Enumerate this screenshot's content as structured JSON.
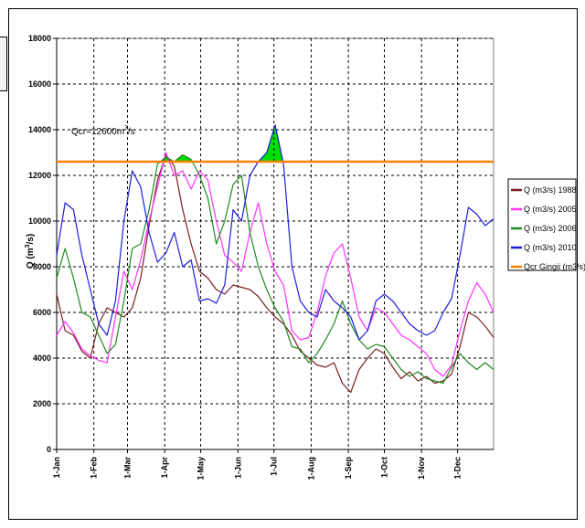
{
  "colors": {
    "1988": "#7a1f1f",
    "2005": "#ff33ff",
    "2006": "#1f8a1f",
    "2010": "#1f1fd9",
    "threshold": "#ff8000",
    "exceedance_fill": "#00dd00"
  },
  "chart_data": {
    "type": "line",
    "title": "",
    "ylabel": "Q (m³/s)",
    "xlabel": "",
    "ylim": [
      0,
      18000
    ],
    "yticks": [
      0,
      2000,
      4000,
      6000,
      8000,
      10000,
      12000,
      14000,
      16000,
      18000
    ],
    "xlim": [
      1,
      365
    ],
    "x_ticks": [
      {
        "label": "1-Jan",
        "day": 1
      },
      {
        "label": "1-Feb",
        "day": 32
      },
      {
        "label": "1-Mar",
        "day": 60
      },
      {
        "label": "1-Apr",
        "day": 91
      },
      {
        "label": "1-May",
        "day": 121
      },
      {
        "label": "1-Jun",
        "day": 152
      },
      {
        "label": "1-Jul",
        "day": 182
      },
      {
        "label": "1-Aug",
        "day": 213
      },
      {
        "label": "1-Sep",
        "day": 244
      },
      {
        "label": "1-Oct",
        "day": 274
      },
      {
        "label": "1-Nov",
        "day": 305
      },
      {
        "label": "1-Dec",
        "day": 335
      }
    ],
    "grid": true,
    "legend_position": "right",
    "annotation": "Qcr=12600m³/s",
    "threshold": {
      "name": "Qcr Gingii (m3/s)",
      "value": 12600
    },
    "series": [
      {
        "key": "1988",
        "name": "Q (m3/s) 1988",
        "x": [
          1,
          8,
          15,
          22,
          29,
          36,
          43,
          50,
          57,
          64,
          71,
          78,
          85,
          92,
          99,
          106,
          113,
          120,
          127,
          134,
          141,
          148,
          155,
          162,
          169,
          176,
          183,
          190,
          197,
          204,
          211,
          218,
          225,
          232,
          239,
          246,
          253,
          260,
          267,
          274,
          281,
          288,
          295,
          302,
          309,
          316,
          323,
          330,
          337,
          344,
          351,
          358,
          365
        ],
        "y": [
          6800,
          5200,
          5000,
          4300,
          4000,
          5500,
          6200,
          6000,
          5800,
          6200,
          7500,
          9800,
          11800,
          12900,
          12400,
          10500,
          9000,
          7800,
          7500,
          7000,
          6800,
          7200,
          7100,
          7000,
          6700,
          6200,
          5800,
          5500,
          5000,
          4300,
          4000,
          3700,
          3600,
          3800,
          2900,
          2500,
          3500,
          4000,
          4400,
          4200,
          3600,
          3100,
          3400,
          3000,
          3200,
          2900,
          3000,
          3300,
          4500,
          6000,
          5800,
          5400,
          4900
        ]
      },
      {
        "key": "2005",
        "name": "Q (m3/s) 2005",
        "x": [
          1,
          8,
          15,
          22,
          29,
          36,
          43,
          50,
          57,
          64,
          71,
          78,
          85,
          92,
          99,
          106,
          113,
          120,
          127,
          134,
          141,
          148,
          155,
          162,
          169,
          176,
          183,
          190,
          197,
          204,
          211,
          218,
          225,
          232,
          239,
          246,
          253,
          260,
          267,
          274,
          281,
          288,
          295,
          302,
          309,
          316,
          323,
          330,
          337,
          344,
          351,
          358,
          365
        ],
        "y": [
          5000,
          5600,
          5100,
          4400,
          4100,
          3900,
          3800,
          5800,
          7800,
          7000,
          8300,
          10000,
          11500,
          13000,
          12000,
          12200,
          11400,
          12200,
          11800,
          10000,
          8500,
          8200,
          7800,
          9500,
          10800,
          9000,
          7800,
          7200,
          5200,
          4800,
          4900,
          6000,
          7600,
          8600,
          9000,
          7500,
          5800,
          5200,
          6200,
          6000,
          5500,
          5000,
          4800,
          4500,
          4200,
          3500,
          3200,
          3700,
          5200,
          6500,
          7300,
          6800,
          6000
        ]
      },
      {
        "key": "2006",
        "name": "Q (m3/s) 2006",
        "x": [
          1,
          8,
          15,
          22,
          29,
          36,
          43,
          50,
          57,
          64,
          71,
          78,
          85,
          92,
          99,
          106,
          113,
          120,
          127,
          134,
          141,
          148,
          155,
          162,
          169,
          176,
          183,
          190,
          197,
          204,
          211,
          218,
          225,
          232,
          239,
          246,
          253,
          260,
          267,
          274,
          281,
          288,
          295,
          302,
          309,
          316,
          323,
          330,
          337,
          344,
          351,
          358,
          365
        ],
        "y": [
          7500,
          8800,
          7500,
          6000,
          5800,
          5000,
          4200,
          4600,
          6500,
          8800,
          9000,
          10500,
          12500,
          12800,
          12600,
          12900,
          12700,
          12000,
          11000,
          9000,
          10000,
          11600,
          12000,
          9500,
          8000,
          7000,
          6200,
          5600,
          4500,
          4400,
          3800,
          4200,
          4800,
          5500,
          6500,
          5500,
          4800,
          4400,
          4600,
          4500,
          4000,
          3500,
          3200,
          3400,
          3100,
          3000,
          2900,
          3600,
          4200,
          3800,
          3500,
          3800,
          3500
        ]
      },
      {
        "key": "2010",
        "name": "Q (m3/s) 2010",
        "x": [
          1,
          8,
          15,
          22,
          29,
          36,
          43,
          50,
          57,
          64,
          71,
          78,
          85,
          92,
          99,
          106,
          113,
          120,
          127,
          134,
          141,
          148,
          155,
          162,
          169,
          176,
          183,
          190,
          197,
          204,
          211,
          218,
          225,
          232,
          239,
          246,
          253,
          260,
          267,
          274,
          281,
          288,
          295,
          302,
          309,
          316,
          323,
          330,
          337,
          344,
          351,
          358,
          365
        ],
        "y": [
          8500,
          10800,
          10500,
          8500,
          7000,
          5500,
          5000,
          6500,
          10000,
          12200,
          11500,
          9500,
          8200,
          8600,
          9500,
          8000,
          8300,
          6500,
          6600,
          6400,
          7200,
          10500,
          10000,
          12000,
          12600,
          13000,
          14200,
          12500,
          8000,
          6500,
          6000,
          5800,
          7000,
          6500,
          6200,
          5800,
          4800,
          5200,
          6500,
          6800,
          6500,
          6000,
          5500,
          5200,
          5000,
          5200,
          6000,
          6600,
          8500,
          10600,
          10300,
          9800,
          10100
        ]
      },
      {
        "key": "threshold",
        "name": "Qcr Gingii (m3/s)",
        "x": [
          1,
          365
        ],
        "y": [
          12600,
          12600
        ]
      }
    ]
  }
}
